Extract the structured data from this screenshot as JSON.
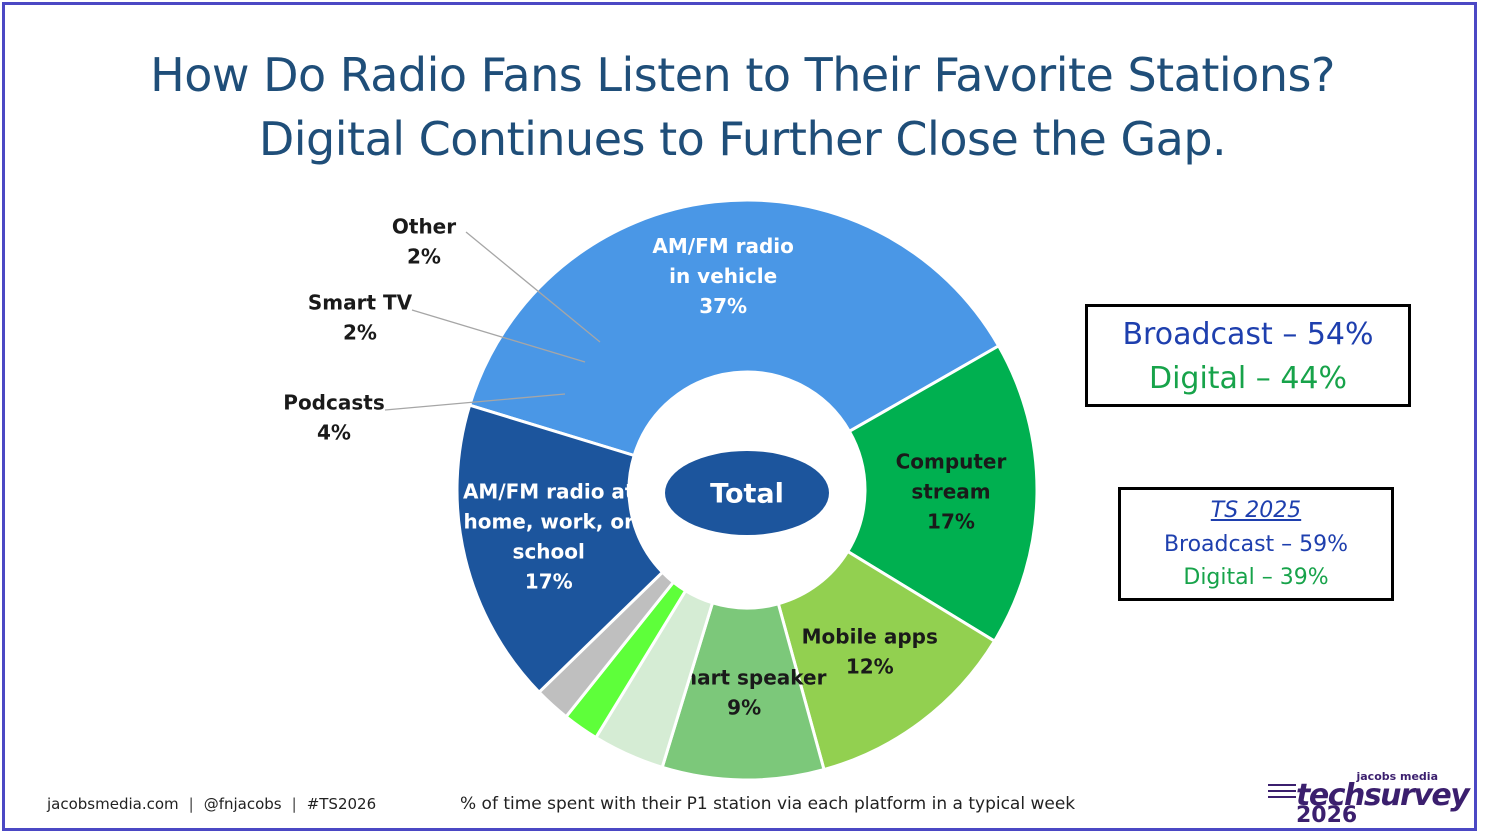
{
  "title_line1": "How Do Radio Fans Listen to Their Favorite Stations?",
  "title_line2": "Digital Continues to Further Close the Gap.",
  "center_label": "Total",
  "chart_data": {
    "type": "pie",
    "subtype": "donut",
    "slices": [
      {
        "label": [
          "AM/FM radio",
          "in vehicle"
        ],
        "value": 37,
        "value_label": "37%",
        "color": "#4a97e6",
        "label_color": "#ffffff",
        "label_pos": "inside"
      },
      {
        "label": [
          "Computer",
          "stream"
        ],
        "value": 17,
        "value_label": "17%",
        "color": "#00b050",
        "label_color": "#1a1a1a",
        "label_pos": "inside"
      },
      {
        "label": [
          "Mobile apps"
        ],
        "value": 12,
        "value_label": "12%",
        "color": "#92d050",
        "label_color": "#1a1a1a",
        "label_pos": "inside"
      },
      {
        "label": [
          "Smart speaker"
        ],
        "value": 9,
        "value_label": "9%",
        "color": "#7cc87a",
        "label_color": "#1a1a1a",
        "label_pos": "inside"
      },
      {
        "label": [
          "Podcasts"
        ],
        "value": 4,
        "value_label": "4%",
        "color": "#d5ecd4",
        "label_color": "#1a1a1a",
        "label_pos": "outside"
      },
      {
        "label": [
          "Smart TV"
        ],
        "value": 2,
        "value_label": "2%",
        "color": "#5eff3a",
        "label_color": "#1a1a1a",
        "label_pos": "outside"
      },
      {
        "label": [
          "Other"
        ],
        "value": 2,
        "value_label": "2%",
        "color": "#bfbfbf",
        "label_color": "#1a1a1a",
        "label_pos": "outside"
      },
      {
        "label": [
          "AM/FM radio at",
          "home, work, or",
          "school"
        ],
        "value": 17,
        "value_label": "17%",
        "color": "#1c559d",
        "label_color": "#ffffff",
        "label_pos": "inside"
      }
    ]
  },
  "summary": {
    "broadcast": "Broadcast – 54%",
    "digital": "Digital – 44%"
  },
  "previous": {
    "heading": "TS 2025",
    "broadcast": "Broadcast – 59%",
    "digital": "Digital – 39%"
  },
  "footer": {
    "site": "jacobsmedia.com",
    "handle": "@fnjacobs",
    "hashtag": "#TS2026",
    "separator": "|",
    "note": "% of time spent with their P1 station via each platform in a typical week"
  },
  "logo": {
    "top": "jacobs media",
    "name": "techsurvey",
    "year": "2026"
  },
  "colors": {
    "title": "#1f4e79",
    "broadcast": "#1e3fae",
    "digital": "#17a34a",
    "frame": "#4b48c4"
  }
}
